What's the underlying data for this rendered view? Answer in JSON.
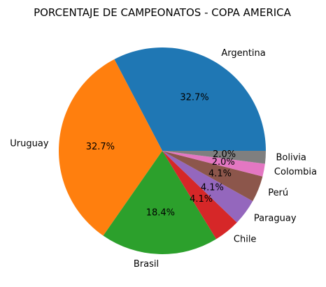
{
  "chart_data": {
    "type": "pie",
    "title": "PORCENTAJE DE CAMPEONATOS - COPA AMERICA",
    "slices": [
      {
        "label": "Argentina",
        "value": 32.7,
        "pct_label": "32.7%",
        "color": "#1f77b4"
      },
      {
        "label": "Uruguay",
        "value": 32.7,
        "pct_label": "32.7%",
        "color": "#ff7f0e"
      },
      {
        "label": "Brasil",
        "value": 18.4,
        "pct_label": "18.4%",
        "color": "#2ca02c"
      },
      {
        "label": "Chile",
        "value": 4.1,
        "pct_label": "4.1%",
        "color": "#d62728"
      },
      {
        "label": "Paraguay",
        "value": 4.1,
        "pct_label": "4.1%",
        "color": "#9467bd"
      },
      {
        "label": "Perú",
        "value": 4.1,
        "pct_label": "4.1%",
        "color": "#8c564b"
      },
      {
        "label": "Colombia",
        "value": 2.0,
        "pct_label": "2.0%",
        "color": "#e377c2"
      },
      {
        "label": "Bolivia",
        "value": 2.0,
        "pct_label": "2.0%",
        "color": "#7f7f7f"
      }
    ],
    "start_angle_deg": 0,
    "direction": "counterclockwise",
    "legend": "none"
  }
}
